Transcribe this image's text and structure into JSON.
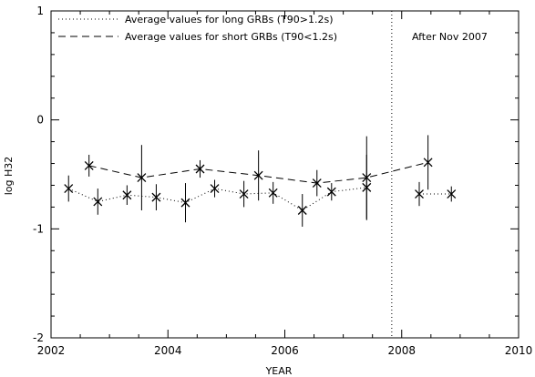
{
  "chart_data": {
    "type": "scatter",
    "xlabel": "YEAR",
    "ylabel": "log H32",
    "xlim": [
      2002,
      2010
    ],
    "ylim": [
      -2,
      1
    ],
    "x_ticks": [
      {
        "value": 2002,
        "label": "2002"
      },
      {
        "value": 2004,
        "label": "2004"
      },
      {
        "value": 2006,
        "label": "2006"
      },
      {
        "value": 2008,
        "label": "2008"
      },
      {
        "value": 2010,
        "label": "2010"
      }
    ],
    "y_ticks": [
      {
        "value": 1,
        "label": "1"
      },
      {
        "value": 0,
        "label": "0"
      },
      {
        "value": -1,
        "label": "-1"
      },
      {
        "value": -2,
        "label": "-2"
      }
    ],
    "legend": {
      "position": "top-left",
      "entries": [
        {
          "label": "Average values for long GRBs (T90>1.2s)",
          "style": "dotted"
        },
        {
          "label": "Average values for short GRBs (T90<1.2s)",
          "style": "dashed"
        }
      ]
    },
    "vertical_line": {
      "x": 2007.83,
      "style": "dotted"
    },
    "annotation": {
      "text": "After Nov 2007",
      "position": "top-right"
    },
    "series": [
      {
        "name": "Average values for long GRBs (T90>1.2s)",
        "line_style": "dotted",
        "points": [
          {
            "x": 2002.3,
            "y": -0.63,
            "err": 0.12
          },
          {
            "x": 2002.8,
            "y": -0.75,
            "err": 0.12
          },
          {
            "x": 2003.3,
            "y": -0.69,
            "err": 0.09
          },
          {
            "x": 2003.8,
            "y": -0.71,
            "err": 0.12
          },
          {
            "x": 2004.3,
            "y": -0.76,
            "err": 0.18
          },
          {
            "x": 2004.8,
            "y": -0.63,
            "err": 0.08
          },
          {
            "x": 2005.3,
            "y": -0.68,
            "err": 0.12
          },
          {
            "x": 2005.8,
            "y": -0.67,
            "err": 0.1
          },
          {
            "x": 2006.3,
            "y": -0.83,
            "err": 0.15
          },
          {
            "x": 2006.8,
            "y": -0.66,
            "err": 0.08
          },
          {
            "x": 2007.4,
            "y": -0.62,
            "err": 0.3
          },
          {
            "x": 2008.3,
            "y": -0.68,
            "err": 0.11
          },
          {
            "x": 2008.85,
            "y": -0.68,
            "err": 0.07
          }
        ],
        "line_break_after_index": 10
      },
      {
        "name": "Average values for short GRBs (T90<1.2s)",
        "line_style": "dashed",
        "points": [
          {
            "x": 2002.65,
            "y": -0.42,
            "err": 0.1
          },
          {
            "x": 2003.55,
            "y": -0.53,
            "err": 0.3
          },
          {
            "x": 2004.55,
            "y": -0.45,
            "err": 0.08
          },
          {
            "x": 2005.55,
            "y": -0.51,
            "err": 0.23
          },
          {
            "x": 2006.55,
            "y": -0.58,
            "err": 0.12
          },
          {
            "x": 2007.4,
            "y": -0.53,
            "err": 0.38
          },
          {
            "x": 2008.45,
            "y": -0.39,
            "err": 0.25
          }
        ]
      }
    ]
  },
  "colors": {
    "axis": "#000000",
    "background": "#ffffff"
  }
}
